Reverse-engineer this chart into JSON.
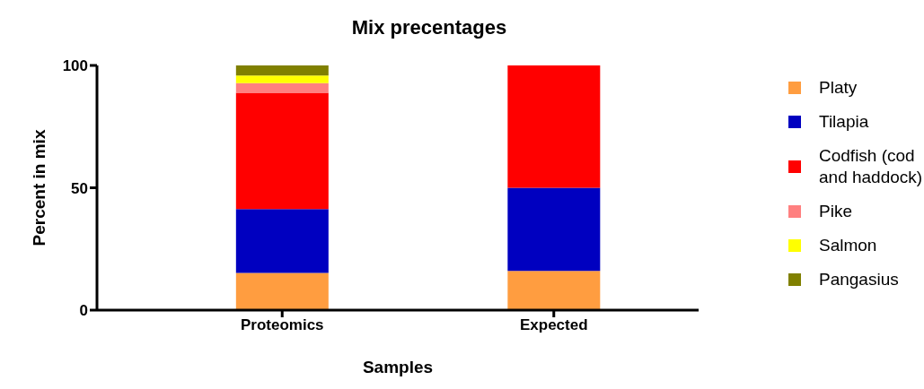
{
  "chart_data": {
    "type": "bar",
    "title": "Mix precentages",
    "xlabel": "Samples",
    "ylabel": "Percent in mix",
    "categories": [
      "Proteomics",
      "Expected"
    ],
    "stacked": true,
    "ylim": [
      0,
      100
    ],
    "yticks": [
      0,
      50,
      100
    ],
    "legend": "right",
    "series": [
      {
        "name": "Platy",
        "color": "#ff9d40",
        "values": [
          15.2,
          16
        ]
      },
      {
        "name": "Tilapia",
        "color": "#0000c0",
        "values": [
          26.1,
          34
        ]
      },
      {
        "name": "Codfish (cod and haddock)",
        "color": "#ff0000",
        "values": [
          47.5,
          50
        ]
      },
      {
        "name": "Pike",
        "color": "#ff8080",
        "values": [
          4,
          0
        ]
      },
      {
        "name": "Salmon",
        "color": "#ffff00",
        "values": [
          3.1,
          0
        ]
      },
      {
        "name": "Pangasius",
        "color": "#808000",
        "values": [
          4.1,
          0
        ]
      }
    ]
  }
}
